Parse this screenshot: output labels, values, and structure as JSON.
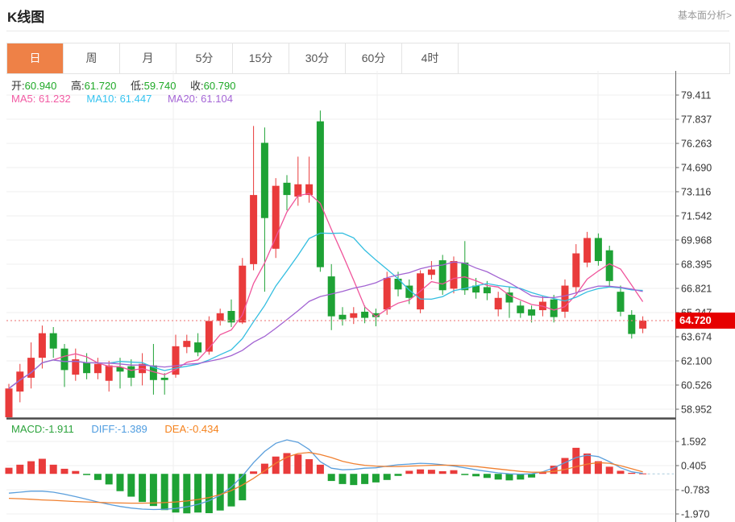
{
  "header": {
    "title": "K线图",
    "link_label": "基本面分析>"
  },
  "tabs": [
    {
      "label": "日",
      "active": true
    },
    {
      "label": "周",
      "active": false
    },
    {
      "label": "月",
      "active": false
    },
    {
      "label": "5分",
      "active": false
    },
    {
      "label": "15分",
      "active": false
    },
    {
      "label": "30分",
      "active": false
    },
    {
      "label": "60分",
      "active": false
    },
    {
      "label": "4时",
      "active": false
    }
  ],
  "legend": {
    "ohlc": [
      {
        "label": "开:",
        "value": "60.940"
      },
      {
        "label": "高:",
        "value": "61.720"
      },
      {
        "label": "低:",
        "value": "59.740"
      },
      {
        "label": "收:",
        "value": "60.790"
      }
    ],
    "ma": [
      {
        "label": "MA5:",
        "value": "61.232"
      },
      {
        "label": "MA10:",
        "value": "61.447"
      },
      {
        "label": "MA20:",
        "value": "61.104"
      }
    ]
  },
  "macd_legend": [
    {
      "label": "MACD:",
      "value": "-1.911"
    },
    {
      "label": "DIFF:",
      "value": "-1.389"
    },
    {
      "label": "DEA:",
      "value": "-0.434"
    }
  ],
  "price_marker": {
    "value": "64.720",
    "price": 64.72
  },
  "colors": {
    "up_candle": "#E93B3B",
    "down_candle": "#1EA235",
    "ma5_line": "#F0559B",
    "ma10_line": "#33BEE0",
    "ma20_line": "#A263D2",
    "diff_line": "#5B9FDC",
    "dea_line": "#F08030",
    "tab_active": "#EE8147",
    "badge": "#E60000",
    "grid": "#efefef",
    "axis": "#666666",
    "dotted_price_line": "#F08C8C"
  },
  "chart_data": {
    "type": "candlestick+macd",
    "main": {
      "ylabels": [
        "79.411",
        "77.837",
        "76.263",
        "74.690",
        "73.116",
        "71.542",
        "69.968",
        "68.395",
        "66.821",
        "65.247",
        "63.674",
        "62.100",
        "60.526",
        "58.952"
      ],
      "ma_periods": [
        5,
        10,
        20
      ],
      "candles": [
        [
          58.4,
          60.6,
          58.2,
          60.3
        ],
        [
          60.1,
          61.9,
          59.4,
          61.4
        ],
        [
          61.0,
          63.3,
          60.3,
          62.3
        ],
        [
          62.3,
          64.4,
          61.6,
          63.9
        ],
        [
          63.9,
          64.3,
          62.3,
          62.9
        ],
        [
          62.9,
          63.2,
          60.4,
          61.5
        ],
        [
          61.2,
          62.9,
          60.8,
          62.2
        ],
        [
          62.0,
          62.6,
          60.9,
          61.3
        ],
        [
          61.3,
          62.3,
          60.9,
          61.9
        ],
        [
          60.8,
          62.1,
          60.1,
          61.8
        ],
        [
          61.7,
          62.3,
          60.3,
          61.4
        ],
        [
          61.75,
          62.2,
          60.45,
          61.0
        ],
        [
          61.3,
          62.6,
          60.5,
          61.9
        ],
        [
          61.8,
          63.2,
          59.9,
          60.85
        ],
        [
          61.0,
          61.3,
          59.9,
          60.85
        ],
        [
          61.2,
          63.8,
          61.0,
          63.05
        ],
        [
          63.0,
          63.8,
          62.6,
          63.4
        ],
        [
          63.3,
          63.9,
          62.4,
          62.65
        ],
        [
          62.7,
          65.0,
          62.5,
          64.7
        ],
        [
          64.7,
          65.5,
          64.4,
          65.2
        ],
        [
          65.35,
          66.1,
          64.3,
          64.6
        ],
        [
          64.6,
          68.8,
          64.5,
          68.3
        ],
        [
          68.4,
          77.4,
          68.0,
          72.9
        ],
        [
          76.3,
          77.3,
          66.6,
          71.4
        ],
        [
          69.4,
          74.0,
          68.8,
          73.5
        ],
        [
          73.7,
          74.2,
          71.9,
          72.9
        ],
        [
          72.8,
          75.4,
          72.2,
          73.6
        ],
        [
          72.9,
          75.4,
          72.4,
          73.6
        ],
        [
          77.7,
          78.4,
          67.9,
          68.2
        ],
        [
          67.6,
          68.4,
          64.1,
          65.0
        ],
        [
          65.1,
          65.6,
          64.4,
          64.8
        ],
        [
          64.9,
          65.6,
          64.5,
          65.2
        ],
        [
          65.3,
          65.7,
          64.55,
          64.9
        ],
        [
          65.2,
          65.5,
          64.35,
          64.95
        ],
        [
          65.45,
          67.9,
          65.1,
          67.5
        ],
        [
          67.45,
          67.9,
          66.3,
          66.75
        ],
        [
          67.0,
          67.4,
          65.8,
          66.2
        ],
        [
          65.45,
          68.0,
          65.2,
          67.8
        ],
        [
          67.7,
          68.6,
          67.4,
          68.05
        ],
        [
          68.65,
          69.0,
          66.4,
          66.7
        ],
        [
          66.8,
          68.9,
          66.5,
          68.6
        ],
        [
          68.5,
          69.9,
          66.4,
          66.7
        ],
        [
          67.0,
          67.5,
          66.15,
          66.55
        ],
        [
          66.9,
          67.3,
          66.05,
          66.5
        ],
        [
          65.45,
          66.6,
          65.0,
          66.2
        ],
        [
          66.55,
          66.95,
          64.9,
          65.9
        ],
        [
          65.7,
          66.0,
          64.9,
          65.2
        ],
        [
          65.45,
          65.7,
          64.6,
          65.05
        ],
        [
          65.4,
          66.3,
          65.0,
          65.95
        ],
        [
          66.1,
          66.4,
          64.6,
          64.95
        ],
        [
          65.3,
          67.4,
          64.9,
          67.0
        ],
        [
          66.9,
          69.7,
          66.5,
          69.1
        ],
        [
          68.5,
          70.5,
          68.2,
          70.1
        ],
        [
          70.1,
          70.4,
          68.3,
          68.6
        ],
        [
          69.3,
          69.6,
          66.9,
          67.3
        ],
        [
          66.6,
          67.0,
          65.0,
          65.3
        ],
        [
          65.1,
          65.4,
          63.55,
          63.85
        ],
        [
          64.2,
          65.0,
          63.9,
          64.72
        ]
      ]
    },
    "macd": {
      "ylabels": [
        "1.592",
        "0.405",
        "-0.783",
        "-1.970"
      ],
      "hist": [
        0.3,
        0.45,
        0.62,
        0.74,
        0.45,
        0.25,
        0.14,
        -0.06,
        -0.3,
        -0.52,
        -0.85,
        -1.12,
        -1.38,
        -1.58,
        -1.78,
        -1.9,
        -1.94,
        -1.9,
        -1.93,
        -1.8,
        -1.6,
        -1.3,
        0.12,
        0.5,
        0.85,
        1.02,
        0.95,
        0.72,
        0.45,
        -0.35,
        -0.5,
        -0.55,
        -0.5,
        -0.42,
        -0.3,
        -0.1,
        0.15,
        0.22,
        0.2,
        0.13,
        0.18,
        -0.06,
        -0.12,
        -0.2,
        -0.28,
        -0.32,
        -0.28,
        -0.18,
        0.08,
        0.4,
        0.78,
        1.28,
        1.0,
        0.62,
        0.35,
        0.15,
        0.05,
        0.02
      ],
      "diff": [
        -0.95,
        -0.9,
        -0.85,
        -0.85,
        -0.9,
        -1.0,
        -1.12,
        -1.25,
        -1.38,
        -1.5,
        -1.6,
        -1.68,
        -1.73,
        -1.75,
        -1.74,
        -1.7,
        -1.62,
        -1.5,
        -1.32,
        -1.05,
        -0.65,
        -0.1,
        0.55,
        1.1,
        1.5,
        1.67,
        1.55,
        1.2,
        0.6,
        0.28,
        0.2,
        0.22,
        0.28,
        0.3,
        0.38,
        0.45,
        0.48,
        0.52,
        0.5,
        0.45,
        0.38,
        0.3,
        0.2,
        0.12,
        0.05,
        0.0,
        -0.02,
        0.0,
        0.1,
        0.3,
        0.55,
        0.8,
        0.92,
        0.85,
        0.6,
        0.3,
        0.1,
        0.02
      ],
      "dea": [
        -1.2,
        -1.22,
        -1.25,
        -1.28,
        -1.3,
        -1.33,
        -1.36,
        -1.38,
        -1.4,
        -1.42,
        -1.43,
        -1.44,
        -1.44,
        -1.43,
        -1.41,
        -1.38,
        -1.33,
        -1.26,
        -1.16,
        -1.02,
        -0.82,
        -0.55,
        -0.22,
        0.15,
        0.52,
        0.82,
        1.0,
        1.05,
        0.95,
        0.8,
        0.62,
        0.5,
        0.42,
        0.38,
        0.36,
        0.36,
        0.38,
        0.4,
        0.42,
        0.43,
        0.42,
        0.4,
        0.36,
        0.3,
        0.24,
        0.18,
        0.12,
        0.08,
        0.08,
        0.12,
        0.22,
        0.35,
        0.48,
        0.55,
        0.52,
        0.4,
        0.25,
        0.1
      ]
    }
  }
}
